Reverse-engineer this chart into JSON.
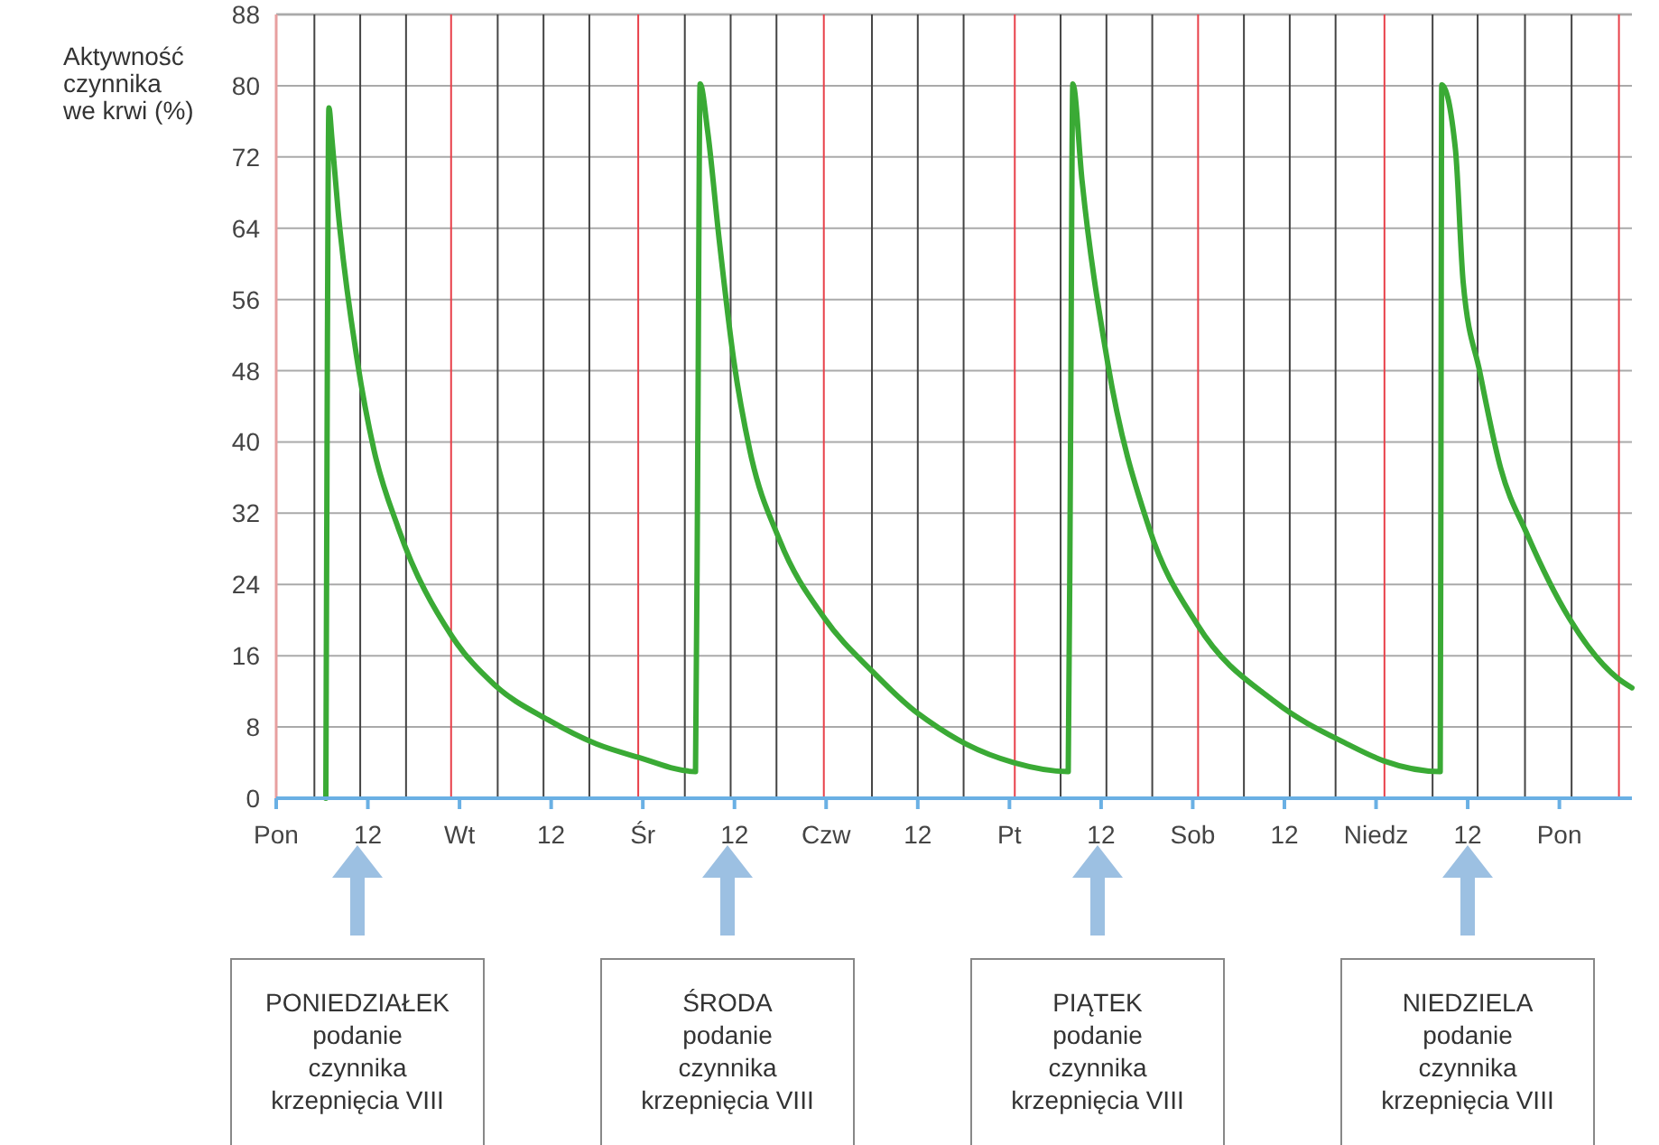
{
  "chart_data": {
    "type": "line",
    "ylabel": "Aktywność\nczynnika\nwe krwi (%)",
    "xlim": [
      "--01-01T00:00",
      "--01-08T09:30"
    ],
    "ylim": [
      0,
      88
    ],
    "xticks": [
      {
        "value": "--01-01T00:00",
        "label": "Pon"
      },
      {
        "value": "--01-01T12:00",
        "label": "12"
      },
      {
        "value": "--01-02T00:00",
        "label": "Wt"
      },
      {
        "value": "--01-02T12:00",
        "label": "12"
      },
      {
        "value": "--01-03T00:00",
        "label": "Śr"
      },
      {
        "value": "--01-03T12:00",
        "label": "12"
      },
      {
        "value": "--01-04T00:00",
        "label": "Czw"
      },
      {
        "value": "--01-04T12:00",
        "label": "12"
      },
      {
        "value": "--01-05T00:00",
        "label": "Pt"
      },
      {
        "value": "--01-05T12:00",
        "label": "12"
      },
      {
        "value": "--01-06T00:00",
        "label": "Sob"
      },
      {
        "value": "--01-06T12:00",
        "label": "12"
      },
      {
        "value": "--01-07T00:00",
        "label": "Niedz"
      },
      {
        "value": "--01-07T12:00",
        "label": "12"
      },
      {
        "value": "--01-08T00:00",
        "label": "Pon"
      }
    ],
    "yticks": [
      0,
      8,
      16,
      24,
      32,
      40,
      48,
      56,
      64,
      72,
      80,
      88
    ],
    "grid": "y",
    "marker": "none",
    "line_style": "solid",
    "series": [
      {
        "color": "#3aaa35",
        "x": [
          "--01-01T06:30",
          "--01-01T06:42",
          "--01-01T06:54",
          "--01-01T07:18",
          "--01-01T08:06",
          "--01-01T10:36",
          "--01-01T12:48",
          "--01-01T16:00",
          "--01-01T23:00",
          "--01-02T04:30",
          "--01-02T11:36",
          "--01-02T17:54",
          "--01-02T23:24",
          "--01-03T06:54",
          "--01-03T07:12",
          "--01-03T07:30",
          "--01-03T08:30",
          "--01-03T10:00",
          "--01-03T11:54",
          "--01-03T14:00",
          "--01-03T17:54",
          "--01-03T23:48",
          "--01-04T06:06",
          "--01-04T11:36",
          "--01-04T13:12",
          "--01-04T18:18",
          "--01-05T00:36",
          "--01-05T07:42",
          "--01-05T08:00",
          "--01-05T08:18",
          "--01-05T09:30",
          "--01-05T12:48",
          "--01-05T18:18",
          "--01-06T00:36",
          "--01-06T10:48",
          "--01-06T20:12",
          "--01-07T01:00",
          "--01-07T08:24",
          "--01-07T08:30",
          "--01-07T08:36",
          "--01-07T10:24",
          "--01-07T11:24",
          "--01-07T13:36",
          "--01-07T16:18",
          "--01-07T19:48",
          "--01-08T01:18",
          "--01-08T07:36",
          "--01-08T09:30"
        ],
        "values": [
          0,
          50,
          77.5,
          74,
          66,
          49.2,
          39.1,
          30.3,
          18.2,
          12.8,
          8.8,
          6.1,
          4.6,
          3.0,
          40,
          80.2,
          74.8,
          62.7,
          49.2,
          39.1,
          29,
          20.2,
          14.2,
          9.8,
          8.8,
          6.1,
          4.0,
          3.0,
          40,
          80.2,
          69.4,
          49.2,
          30.3,
          19.5,
          10.8,
          6.1,
          4.2,
          3.0,
          40,
          80.1,
          72.8,
          58,
          47.8,
          37.1,
          29.6,
          20.2,
          13.5,
          12.4
        ]
      }
    ],
    "ref_lines": [
      {
        "axis": "x",
        "value": "--01-01T22:54",
        "color": "#e8414a"
      },
      {
        "axis": "x",
        "value": "--01-02T23:24",
        "color": "#e8414a"
      },
      {
        "axis": "x",
        "value": "--01-03T23:42",
        "color": "#e8414a"
      },
      {
        "axis": "x",
        "value": "--01-05T00:42",
        "color": "#e8414a"
      },
      {
        "axis": "x",
        "value": "--01-06T00:42",
        "color": "#e8414a"
      },
      {
        "axis": "x",
        "value": "--01-07T01:06",
        "color": "#e8414a"
      },
      {
        "axis": "x",
        "value": "--01-08T07:48",
        "color": "#e8414a"
      },
      {
        "axis": "x",
        "value": "--01-01T05:00",
        "color": "#444444"
      },
      {
        "axis": "x",
        "value": "--01-01T11:00",
        "color": "#444444"
      },
      {
        "axis": "x",
        "value": "--01-01T17:00",
        "color": "#444444"
      },
      {
        "axis": "x",
        "value": "--01-02T05:00",
        "color": "#444444"
      },
      {
        "axis": "x",
        "value": "--01-02T11:00",
        "color": "#444444"
      },
      {
        "axis": "x",
        "value": "--01-02T17:00",
        "color": "#444444"
      },
      {
        "axis": "x",
        "value": "--01-03T05:30",
        "color": "#444444"
      },
      {
        "axis": "x",
        "value": "--01-03T11:30",
        "color": "#444444"
      },
      {
        "axis": "x",
        "value": "--01-03T17:30",
        "color": "#444444"
      },
      {
        "axis": "x",
        "value": "--01-04T06:00",
        "color": "#444444"
      },
      {
        "axis": "x",
        "value": "--01-04T12:00",
        "color": "#444444"
      },
      {
        "axis": "x",
        "value": "--01-04T18:00",
        "color": "#444444"
      },
      {
        "axis": "x",
        "value": "--01-05T06:42",
        "color": "#444444"
      },
      {
        "axis": "x",
        "value": "--01-05T12:42",
        "color": "#444444"
      },
      {
        "axis": "x",
        "value": "--01-05T18:42",
        "color": "#444444"
      },
      {
        "axis": "x",
        "value": "--01-06T06:42",
        "color": "#444444"
      },
      {
        "axis": "x",
        "value": "--01-06T12:42",
        "color": "#444444"
      },
      {
        "axis": "x",
        "value": "--01-06T18:42",
        "color": "#444444"
      },
      {
        "axis": "x",
        "value": "--01-07T07:24",
        "color": "#444444"
      },
      {
        "axis": "x",
        "value": "--01-07T13:18",
        "color": "#444444"
      },
      {
        "axis": "x",
        "value": "--01-07T19:30",
        "color": "#444444"
      },
      {
        "axis": "x",
        "value": "--01-08T01:36",
        "color": "#444444"
      }
    ],
    "annotations": [
      "PONIEDZIAŁEK\npodanie\nczynnika\nkrzepnięcia VIII",
      "ŚRODA\npodanie\nczynnika\nkrzepnięcia VIII",
      "PIĄTEK\npodanie\nczynnika\nkrzepnięcia VIII",
      "NIEDZIELA\npodanie\nczynnika\nkrzepnięcia VIII"
    ]
  }
}
